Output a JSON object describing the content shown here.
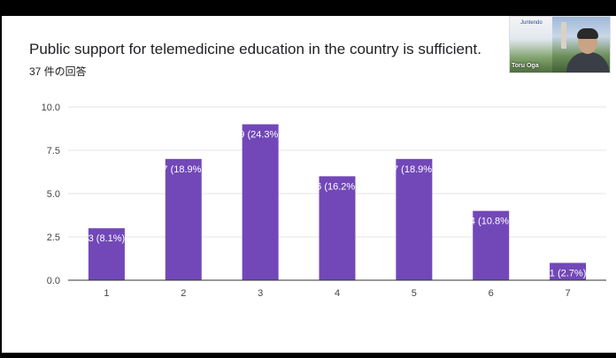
{
  "title": "Public support for telemedicine education in the country is sufficient.",
  "subtitle": "37 件の回答",
  "webcam": {
    "name": "Toru Oga",
    "logo_text": "Juntendo"
  },
  "colors": {
    "bar": "#7248b9",
    "grid": "#e6e6e6",
    "axis": "#333333",
    "background": "#ffffff",
    "frame": "#000000"
  },
  "chart_data": {
    "type": "bar",
    "title": "Public support for telemedicine education in the country is sufficient.",
    "xlabel": "",
    "ylabel": "",
    "ylim": [
      0,
      10
    ],
    "yticks": [
      "0.0",
      "2.5",
      "5.0",
      "7.5",
      "10.0"
    ],
    "ytick_values": [
      0,
      2.5,
      5,
      7.5,
      10
    ],
    "categories": [
      "1",
      "2",
      "3",
      "4",
      "5",
      "6",
      "7"
    ],
    "values": [
      3,
      7,
      9,
      6,
      7,
      4,
      1
    ],
    "data_labels": [
      "3 (8.1%)",
      "7 (18.9%)",
      "9 (24.3%)",
      "6 (16.2%)",
      "7 (18.9%)",
      "4 (10.8%)",
      "1 (2.7%)"
    ],
    "grid": true,
    "legend": "none"
  }
}
